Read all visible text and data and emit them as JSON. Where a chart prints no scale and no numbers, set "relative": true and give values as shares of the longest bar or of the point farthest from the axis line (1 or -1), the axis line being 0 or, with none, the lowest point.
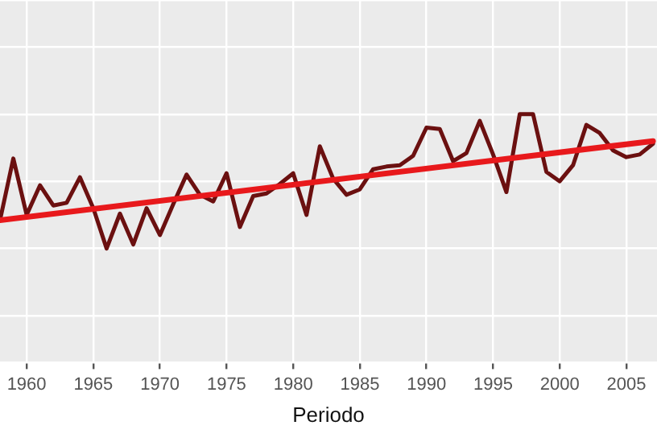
{
  "chart_data": {
    "type": "line",
    "xlabel": "Periodo",
    "relative": true,
    "grid": true,
    "legend": false,
    "marker": "none",
    "line_style": "solid",
    "xlim": [
      1958,
      2007.3
    ],
    "xticks": [
      1960,
      1965,
      1970,
      1975,
      1980,
      1985,
      1990,
      1995,
      2000,
      2005
    ],
    "series": [
      {
        "color": "#6b1010",
        "x": [
          1958,
          1959,
          1960,
          1961,
          1962,
          1963,
          1964,
          1965,
          1966,
          1967,
          1968,
          1969,
          1970,
          1971,
          1972,
          1973,
          1974,
          1975,
          1976,
          1977,
          1978,
          1979,
          1980,
          1981,
          1982,
          1983,
          1984,
          1985,
          1986,
          1987,
          1988,
          1989,
          1990,
          1991,
          1992,
          1993,
          1994,
          1995,
          1996,
          1997,
          1998,
          1999,
          2000,
          2001,
          2002,
          2003,
          2004,
          2005,
          2006,
          2007
        ],
        "values": [
          0.21,
          0.67,
          0.25,
          0.47,
          0.32,
          0.34,
          0.53,
          0.3,
          0,
          0.26,
          0.03,
          0.3,
          0.1,
          0.33,
          0.55,
          0.4,
          0.35,
          0.56,
          0.16,
          0.39,
          0.41,
          0.48,
          0.56,
          0.25,
          0.76,
          0.52,
          0.4,
          0.44,
          0.59,
          0.61,
          0.62,
          0.69,
          0.9,
          0.89,
          0.65,
          0.71,
          0.95,
          0.7,
          0.42,
          1,
          1,
          0.57,
          0.5,
          0.62,
          0.92,
          0.86,
          0.73,
          0.68,
          0.7,
          0.78
        ]
      },
      {
        "type": "line",
        "color": "#e8191c",
        "x": [
          1958,
          2007
        ],
        "values": [
          0.21,
          0.8
        ]
      }
    ]
  }
}
